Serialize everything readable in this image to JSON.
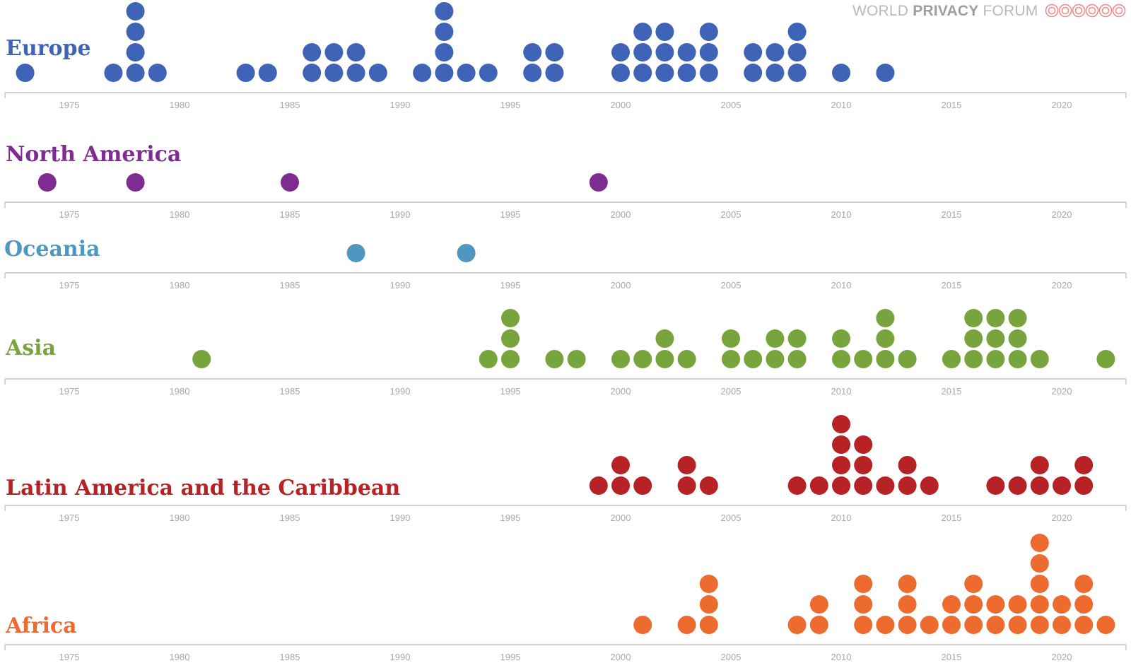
{
  "header": {
    "brand_part1": "WORLD ",
    "brand_part2": "PRIVACY",
    "brand_part3": " FORUM",
    "logo_icon": "swirl-circles-icon",
    "logo_color": "#ee8d8d"
  },
  "chart_data": {
    "type": "scatter",
    "subtype": "dot-strip",
    "xlim": [
      1972,
      2023
    ],
    "x_ticks": [
      1975,
      1980,
      1985,
      1990,
      1995,
      2000,
      2005,
      2010,
      2015,
      2020
    ],
    "grid": false,
    "series": [
      {
        "name": "Europe",
        "color": "#3f63b6",
        "points": [
          [
            1973,
            1
          ],
          [
            1977,
            1
          ],
          [
            1978,
            4
          ],
          [
            1979,
            1
          ],
          [
            1983,
            1
          ],
          [
            1984,
            1
          ],
          [
            1986,
            2
          ],
          [
            1987,
            2
          ],
          [
            1988,
            2
          ],
          [
            1989,
            1
          ],
          [
            1991,
            1
          ],
          [
            1992,
            4
          ],
          [
            1993,
            1
          ],
          [
            1994,
            1
          ],
          [
            1996,
            2
          ],
          [
            1997,
            2
          ],
          [
            2000,
            2
          ],
          [
            2001,
            3
          ],
          [
            2002,
            3
          ],
          [
            2003,
            2
          ],
          [
            2004,
            3
          ],
          [
            2006,
            2
          ],
          [
            2007,
            2
          ],
          [
            2008,
            3
          ],
          [
            2010,
            1
          ],
          [
            2012,
            1
          ]
        ]
      },
      {
        "name": "North America",
        "color": "#7e2b92",
        "points": [
          [
            1974,
            1
          ],
          [
            1978,
            1
          ],
          [
            1985,
            1
          ],
          [
            1999,
            1
          ]
        ]
      },
      {
        "name": "Oceania",
        "color": "#4f96c3",
        "points": [
          [
            1988,
            1
          ],
          [
            1993,
            1
          ]
        ]
      },
      {
        "name": "Asia",
        "color": "#78a43d",
        "points": [
          [
            1981,
            1
          ],
          [
            1994,
            1
          ],
          [
            1995,
            3
          ],
          [
            1997,
            1
          ],
          [
            1998,
            1
          ],
          [
            2000,
            1
          ],
          [
            2001,
            1
          ],
          [
            2002,
            2
          ],
          [
            2003,
            1
          ],
          [
            2005,
            2
          ],
          [
            2006,
            1
          ],
          [
            2007,
            2
          ],
          [
            2008,
            2
          ],
          [
            2010,
            2
          ],
          [
            2011,
            1
          ],
          [
            2012,
            3
          ],
          [
            2013,
            1
          ],
          [
            2015,
            1
          ],
          [
            2016,
            3
          ],
          [
            2017,
            3
          ],
          [
            2018,
            3
          ],
          [
            2019,
            1
          ],
          [
            2022,
            1
          ]
        ]
      },
      {
        "name": "Latin America and the Caribbean",
        "color": "#b62225",
        "points": [
          [
            1999,
            1
          ],
          [
            2000,
            2
          ],
          [
            2001,
            1
          ],
          [
            2003,
            2
          ],
          [
            2004,
            1
          ],
          [
            2008,
            1
          ],
          [
            2009,
            1
          ],
          [
            2010,
            4
          ],
          [
            2011,
            3
          ],
          [
            2012,
            1
          ],
          [
            2013,
            2
          ],
          [
            2014,
            1
          ],
          [
            2017,
            1
          ],
          [
            2018,
            1
          ],
          [
            2019,
            2
          ],
          [
            2020,
            1
          ],
          [
            2021,
            2
          ]
        ]
      },
      {
        "name": "Africa",
        "color": "#ee6b2f",
        "points": [
          [
            2001,
            1
          ],
          [
            2003,
            1
          ],
          [
            2004,
            3
          ],
          [
            2008,
            1
          ],
          [
            2009,
            2
          ],
          [
            2011,
            3
          ],
          [
            2012,
            1
          ],
          [
            2013,
            3
          ],
          [
            2014,
            1
          ],
          [
            2015,
            2
          ],
          [
            2016,
            3
          ],
          [
            2017,
            2
          ],
          [
            2018,
            2
          ],
          [
            2019,
            5
          ],
          [
            2020,
            2
          ],
          [
            2021,
            3
          ],
          [
            2022,
            1
          ]
        ]
      }
    ]
  }
}
